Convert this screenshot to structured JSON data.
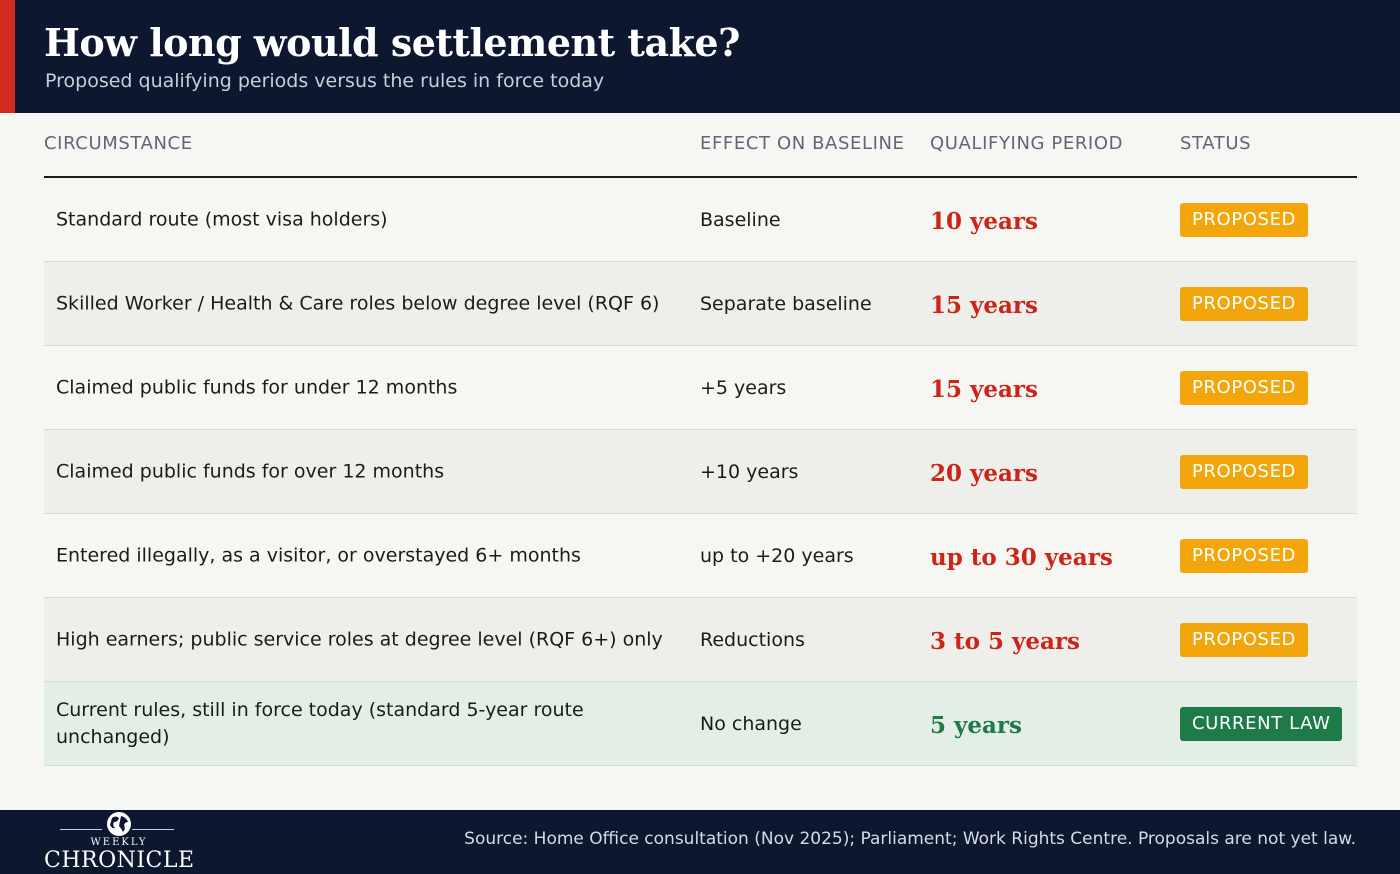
{
  "header": {
    "title": "How long would settlement take?",
    "subtitle": "Proposed qualifying periods versus the rules in force today"
  },
  "chart_data": {
    "type": "table",
    "columns": [
      "CIRCUMSTANCE",
      "EFFECT ON BASELINE",
      "QUALIFYING PERIOD",
      "STATUS"
    ],
    "rows": [
      {
        "circumstance": "Standard route (most visa holders)",
        "effect": "Baseline",
        "period": "10 years",
        "status": "PROPOSED"
      },
      {
        "circumstance": "Skilled Worker / Health & Care roles below degree level (RQF 6)",
        "effect": "Separate baseline",
        "period": "15 years",
        "status": "PROPOSED"
      },
      {
        "circumstance": "Claimed public funds for under 12 months",
        "effect": "+5 years",
        "period": "15 years",
        "status": "PROPOSED"
      },
      {
        "circumstance": "Claimed public funds for over 12 months",
        "effect": "+10 years",
        "period": "20 years",
        "status": "PROPOSED"
      },
      {
        "circumstance": "Entered illegally, as a visitor, or overstayed 6+ months",
        "effect": "up to +20 years",
        "period": "up to 30 years",
        "status": "PROPOSED"
      },
      {
        "circumstance": "High earners; public service roles at degree level (RQF 6+) only",
        "effect": "Reductions",
        "period": "3 to 5 years",
        "status": "PROPOSED"
      },
      {
        "circumstance": "Current rules, still in force today (standard 5-year route unchanged)",
        "effect": "No change",
        "period": "5 years",
        "status": "CURRENT LAW"
      }
    ]
  },
  "colors": {
    "header_bg": "#0d1730",
    "accent_red": "#d32a1f",
    "period_red": "#cc2418",
    "period_green": "#1f7a45",
    "proposed_badge": "#f2a60c",
    "current_badge": "#1e7a47"
  },
  "footer": {
    "logo_top": "WEEKLY",
    "logo_name": "CHRONICLE",
    "globe_icon": "globe-icon",
    "source": "Source: Home Office consultation (Nov 2025); Parliament; Work Rights Centre. Proposals are not yet law."
  }
}
